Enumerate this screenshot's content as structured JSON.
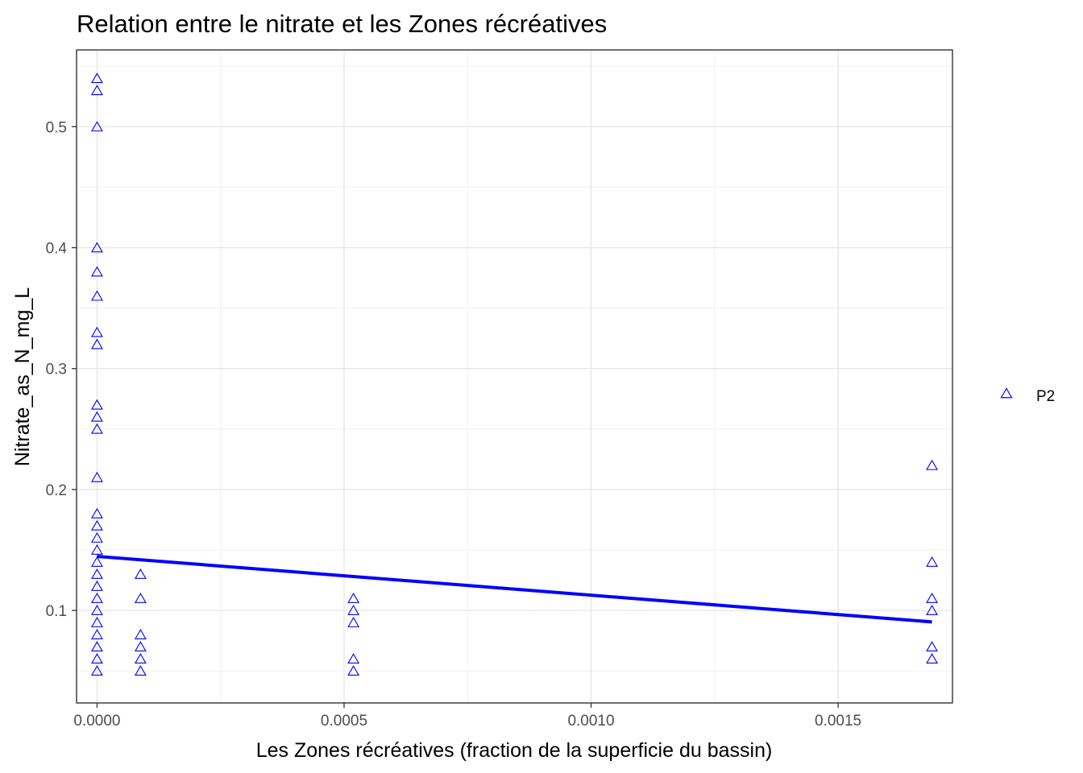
{
  "chart_data": {
    "type": "scatter",
    "title": "Relation entre le nitrate et les Zones récréatives",
    "xlabel": "Les Zones récréatives (fraction de la superficie du bassin)",
    "ylabel": "Nitrate_as_N_mg_L",
    "xlim": [
      -4.15e-05,
      0.0017315
    ],
    "ylim": [
      0.0235,
      0.5635
    ],
    "x_ticks": [
      0.0,
      0.0005,
      0.001,
      0.0015
    ],
    "x_tick_labels": [
      "0.0000",
      "0.0005",
      "0.0010",
      "0.0015"
    ],
    "y_ticks": [
      0.1,
      0.2,
      0.3,
      0.4,
      0.5
    ],
    "y_tick_labels": [
      "0.1",
      "0.2",
      "0.3",
      "0.4",
      "0.5"
    ],
    "grid": true,
    "legend": {
      "position": "right",
      "entries": [
        {
          "label": "P2",
          "marker": "open-triangle",
          "color": "#0000ff"
        }
      ]
    },
    "series": [
      {
        "name": "P2",
        "marker": "open-triangle",
        "color": "#0000ff",
        "points": [
          {
            "x": 0.0,
            "y": 0.54
          },
          {
            "x": 0.0,
            "y": 0.53
          },
          {
            "x": 0.0,
            "y": 0.5
          },
          {
            "x": 0.0,
            "y": 0.4
          },
          {
            "x": 0.0,
            "y": 0.38
          },
          {
            "x": 0.0,
            "y": 0.36
          },
          {
            "x": 0.0,
            "y": 0.33
          },
          {
            "x": 0.0,
            "y": 0.32
          },
          {
            "x": 0.0,
            "y": 0.27
          },
          {
            "x": 0.0,
            "y": 0.26
          },
          {
            "x": 0.0,
            "y": 0.25
          },
          {
            "x": 0.0,
            "y": 0.21
          },
          {
            "x": 0.0,
            "y": 0.18
          },
          {
            "x": 0.0,
            "y": 0.17
          },
          {
            "x": 0.0,
            "y": 0.16
          },
          {
            "x": 0.0,
            "y": 0.15
          },
          {
            "x": 0.0,
            "y": 0.14
          },
          {
            "x": 0.0,
            "y": 0.13
          },
          {
            "x": 0.0,
            "y": 0.12
          },
          {
            "x": 0.0,
            "y": 0.11
          },
          {
            "x": 0.0,
            "y": 0.1
          },
          {
            "x": 0.0,
            "y": 0.09
          },
          {
            "x": 0.0,
            "y": 0.08
          },
          {
            "x": 0.0,
            "y": 0.07
          },
          {
            "x": 0.0,
            "y": 0.06
          },
          {
            "x": 0.0,
            "y": 0.05
          },
          {
            "x": 8.8e-05,
            "y": 0.13
          },
          {
            "x": 8.8e-05,
            "y": 0.11
          },
          {
            "x": 8.8e-05,
            "y": 0.08
          },
          {
            "x": 8.8e-05,
            "y": 0.07
          },
          {
            "x": 8.8e-05,
            "y": 0.06
          },
          {
            "x": 8.8e-05,
            "y": 0.05
          },
          {
            "x": 0.000519,
            "y": 0.11
          },
          {
            "x": 0.000519,
            "y": 0.1
          },
          {
            "x": 0.000519,
            "y": 0.09
          },
          {
            "x": 0.000519,
            "y": 0.06
          },
          {
            "x": 0.000519,
            "y": 0.05
          },
          {
            "x": 0.00169,
            "y": 0.22
          },
          {
            "x": 0.00169,
            "y": 0.14
          },
          {
            "x": 0.00169,
            "y": 0.11
          },
          {
            "x": 0.00169,
            "y": 0.1
          },
          {
            "x": 0.00169,
            "y": 0.07
          },
          {
            "x": 0.00169,
            "y": 0.06
          }
        ]
      }
    ],
    "trend_line": {
      "color": "#0000ff",
      "points": [
        {
          "x": 0.0,
          "y": 0.1447
        },
        {
          "x": 0.00169,
          "y": 0.0905
        }
      ]
    }
  }
}
